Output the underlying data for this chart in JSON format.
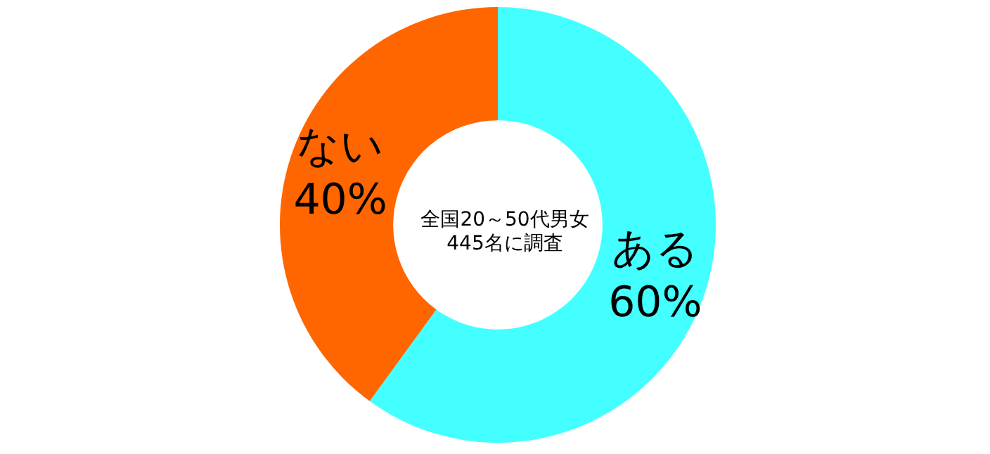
{
  "chart_data": {
    "type": "donut",
    "categories": [
      "ある",
      "ない"
    ],
    "values": [
      60,
      40
    ],
    "colors": [
      "#44ffff",
      "#ff6600"
    ],
    "value_labels": [
      "60%",
      "40%"
    ],
    "annotations": [
      "全国20～50代男女\n445名に調査"
    ]
  }
}
